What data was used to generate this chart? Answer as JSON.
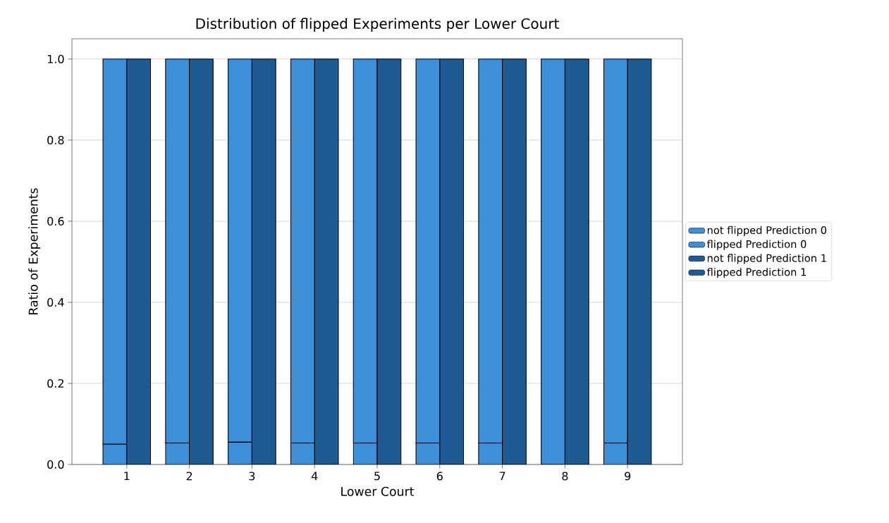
{
  "chart_data": {
    "type": "bar",
    "title": "Distribution of flipped Experiments per Lower Court",
    "xlabel": "Lower Court",
    "ylabel": "Ratio of Experiments",
    "series": [
      {
        "name": "not flipped Prediction 0",
        "color": "#3d8fd9",
        "x": [
          0.81,
          1.81,
          2.81,
          3.81,
          4.81,
          5.81,
          6.81,
          7.81,
          8.81
        ],
        "base": [
          0.05,
          0.053,
          0.055,
          0.053,
          0.053,
          0.053,
          0.053,
          0,
          0.053
        ],
        "values": [
          0.95,
          0.947,
          0.945,
          0.947,
          0.947,
          0.947,
          0.947,
          1,
          0.947
        ]
      },
      {
        "name": "flipped Prediction 0",
        "color": "#3d8fd9",
        "x": [
          0.81,
          1.81,
          2.81,
          3.81,
          4.81,
          5.81,
          6.81,
          7.81,
          8.81
        ],
        "values": [
          0.05,
          0.053,
          0.055,
          0.053,
          0.053,
          0.053,
          0.053,
          0,
          0.053
        ]
      },
      {
        "name": "not flipped Prediction 1",
        "color": "#1f5b92",
        "x": [
          1.19,
          2.19,
          3.19,
          4.19,
          5.19,
          6.19,
          7.19,
          8.19,
          9.19
        ],
        "values": [
          1,
          1,
          1,
          1,
          1,
          1,
          1,
          1,
          1
        ]
      },
      {
        "name": "flipped Prediction 1",
        "color": "#1f5b92",
        "x": [
          1.19,
          2.19,
          3.19,
          4.19,
          5.19,
          6.19,
          7.19,
          8.19,
          9.19
        ],
        "values": [
          0,
          0,
          0,
          0,
          0,
          0,
          0,
          0,
          0
        ]
      }
    ],
    "xlim": [
      0.124,
      9.876
    ],
    "xticks": [
      1,
      2,
      3,
      4,
      5,
      6,
      7,
      8,
      9
    ],
    "ylim": [
      0,
      1.05
    ],
    "yticks": [
      {
        "value": 0,
        "label": "0.0"
      },
      0.2,
      0.4,
      0.6,
      0.8,
      {
        "value": 1,
        "label": "1.0"
      }
    ],
    "grid": "y",
    "legend": "right"
  }
}
